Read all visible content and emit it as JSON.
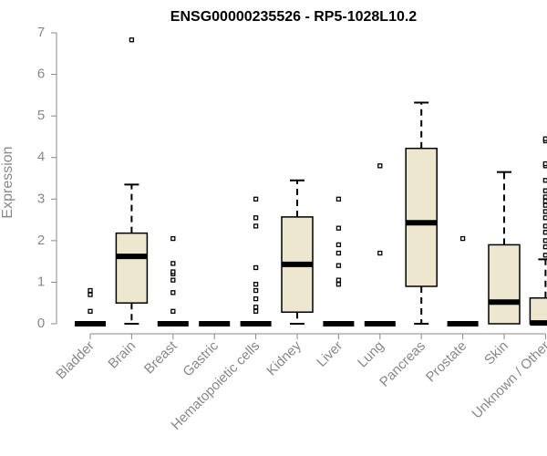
{
  "chart_data": {
    "type": "box",
    "title": "ENSG00000235526 - RP5-1028L10.2",
    "xlabel": "",
    "ylabel": "Expression",
    "ylim": [
      0,
      7
    ],
    "yticks": [
      "0",
      "1",
      "2",
      "3",
      "4",
      "5",
      "6",
      "7"
    ],
    "grid": false,
    "categories": [
      "Bladder",
      "Brain",
      "Breast",
      "Gastric",
      "Hematopoietic cells",
      "Kidney",
      "Liver",
      "Lung",
      "Pancreas",
      "Prostate",
      "Skin",
      "Unknown / Other"
    ],
    "boxes": [
      {
        "min": 0,
        "q1": 0,
        "median": 0,
        "q3": 0,
        "max": 0,
        "outliers": [
          0.3,
          0.7,
          0.8
        ]
      },
      {
        "min": 0,
        "q1": 0.5,
        "median": 1.62,
        "q3": 2.18,
        "max": 3.35,
        "outliers": [
          6.83
        ]
      },
      {
        "min": 0,
        "q1": 0,
        "median": 0,
        "q3": 0,
        "max": 0,
        "outliers": [
          0.3,
          0.75,
          1.05,
          1.2,
          1.25,
          1.45,
          2.05
        ]
      },
      {
        "min": 0,
        "q1": 0,
        "median": 0,
        "q3": 0,
        "max": 0,
        "outliers": []
      },
      {
        "min": 0,
        "q1": 0,
        "median": 0,
        "q3": 0,
        "max": 0,
        "outliers": [
          0.3,
          0.4,
          0.6,
          0.8,
          0.95,
          1.35,
          2.35,
          2.55,
          3.0
        ]
      },
      {
        "min": 0,
        "q1": 0.28,
        "median": 1.43,
        "q3": 2.57,
        "max": 3.45,
        "outliers": []
      },
      {
        "min": 0,
        "q1": 0,
        "median": 0,
        "q3": 0,
        "max": 0,
        "outliers": [
          0.95,
          1.05,
          1.4,
          1.7,
          1.9,
          2.3,
          3.0
        ]
      },
      {
        "min": 0,
        "q1": 0,
        "median": 0,
        "q3": 0,
        "max": 0,
        "outliers": [
          1.7,
          3.8
        ]
      },
      {
        "min": 0,
        "q1": 0.9,
        "median": 2.43,
        "q3": 4.22,
        "max": 5.32,
        "outliers": []
      },
      {
        "min": 0,
        "q1": 0,
        "median": 0,
        "q3": 0,
        "max": 0,
        "outliers": [
          2.05
        ]
      },
      {
        "min": 0,
        "q1": 0,
        "median": 0.52,
        "q3": 1.9,
        "max": 3.65,
        "outliers": []
      },
      {
        "min": 0,
        "q1": 0,
        "median": 0.02,
        "q3": 0.62,
        "max": 1.55,
        "outliers": [
          1.65,
          1.85,
          2.0,
          2.2,
          2.35,
          2.55,
          2.7,
          2.85,
          2.95,
          3.05,
          3.2,
          3.45,
          3.8,
          3.85,
          4.4,
          4.45
        ]
      }
    ],
    "colors": {
      "box_fill": "#ede7cf",
      "box_stroke": "#000000",
      "axis": "#888888"
    }
  }
}
